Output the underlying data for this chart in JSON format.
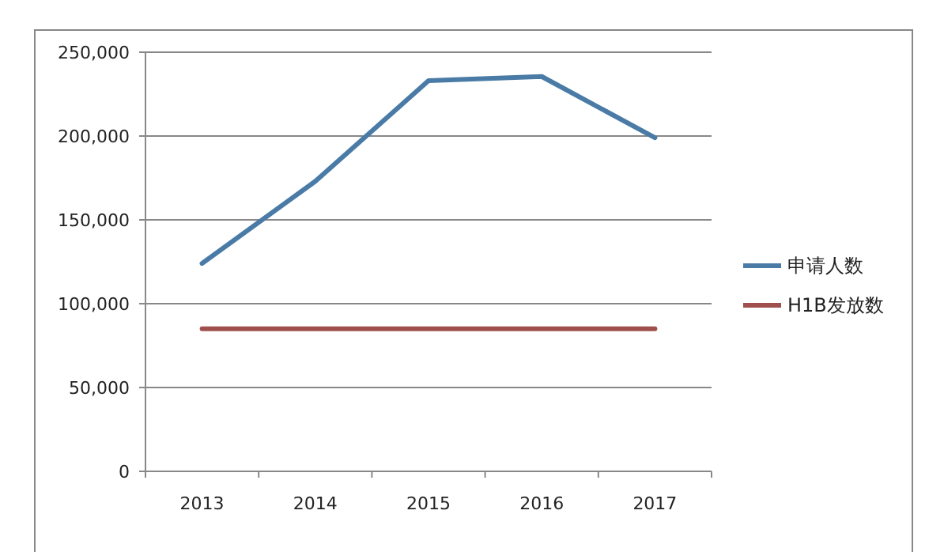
{
  "chart_data": {
    "type": "line",
    "categories": [
      "2013",
      "2014",
      "2015",
      "2016",
      "2017"
    ],
    "series": [
      {
        "name": "申请人数",
        "color": "#4a7ba6",
        "values": [
          124000,
          173000,
          233000,
          235500,
          199000
        ]
      },
      {
        "name": "H1B发放数",
        "color": "#a0504c",
        "values": [
          85000,
          85000,
          85000,
          85000,
          85000
        ]
      }
    ],
    "ylim": [
      0,
      250000
    ],
    "yticks": [
      {
        "value": 0,
        "label": "0"
      },
      {
        "value": 50000,
        "label": "50,000"
      },
      {
        "value": 100000,
        "label": "100,000"
      },
      {
        "value": 150000,
        "label": "150,000"
      },
      {
        "value": 200000,
        "label": "200,000"
      },
      {
        "value": 250000,
        "label": "250,000"
      }
    ],
    "grid": "y",
    "legend": "right",
    "marker": "none",
    "line_style": "solid"
  }
}
